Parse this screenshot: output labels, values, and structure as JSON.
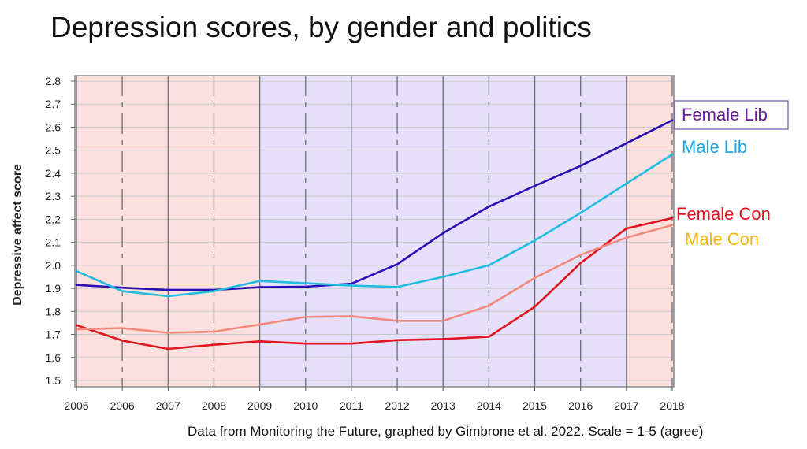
{
  "chart_data": {
    "type": "line",
    "title": "Depression scores, by gender and politics",
    "ylabel": "Depressive affect score",
    "xlabel": "",
    "xlim": [
      2005,
      2018
    ],
    "ylim": [
      1.5,
      2.8
    ],
    "x": [
      2005,
      2006,
      2007,
      2008,
      2009,
      2010,
      2011,
      2012,
      2013,
      2014,
      2015,
      2016,
      2017,
      2018
    ],
    "x_ticks": [
      "2005",
      "2006",
      "2007",
      "2008",
      "2009",
      "2010",
      "2011",
      "2012",
      "2013",
      "2014",
      "2015",
      "2016",
      "2017",
      "2018"
    ],
    "y_ticks": [
      "1.5",
      "1.6",
      "1.7",
      "1.8",
      "1.9",
      "2.0",
      "2.1",
      "2.2",
      "2.3",
      "2.4",
      "2.5",
      "2.6",
      "2.7",
      "2.8"
    ],
    "grid": true,
    "background_bands": [
      {
        "from": 2005,
        "to": 2009,
        "color": "#fbe0de"
      },
      {
        "from": 2009,
        "to": 2017,
        "color": "#e6e0fb"
      },
      {
        "from": 2017,
        "to": 2018,
        "color": "#fbe0de"
      }
    ],
    "series": [
      {
        "name": "Female Lib",
        "color": "#2b0fb5",
        "label_color": "#6a1b9a",
        "boxed": true,
        "values": [
          1.915,
          1.903,
          1.893,
          1.893,
          1.905,
          1.907,
          1.92,
          2.005,
          2.14,
          2.255,
          2.345,
          2.432,
          2.53,
          2.63
        ]
      },
      {
        "name": "Male Lib",
        "color": "#22bde0",
        "label_color": "#1ea5e0",
        "boxed": false,
        "values": [
          1.975,
          1.888,
          1.866,
          1.888,
          1.932,
          1.922,
          1.912,
          1.906,
          1.95,
          2.0,
          2.108,
          2.228,
          2.355,
          2.482
        ]
      },
      {
        "name": "Female Con",
        "color": "#e0161e",
        "label_color": "#e0161e",
        "boxed": false,
        "values": [
          1.74,
          1.673,
          1.637,
          1.655,
          1.67,
          1.66,
          1.66,
          1.675,
          1.68,
          1.69,
          1.82,
          2.01,
          2.16,
          2.205
        ]
      },
      {
        "name": "Male Con",
        "color": "#f4897b",
        "label_color": "#f2b80c",
        "boxed": false,
        "values": [
          1.722,
          1.727,
          1.707,
          1.712,
          1.743,
          1.776,
          1.779,
          1.759,
          1.759,
          1.825,
          1.945,
          2.045,
          2.12,
          2.175
        ]
      }
    ],
    "source_note": "Data from Monitoring the Future, graphed by Gimbrone et al. 2022. Scale = 1-5 (agree)"
  }
}
